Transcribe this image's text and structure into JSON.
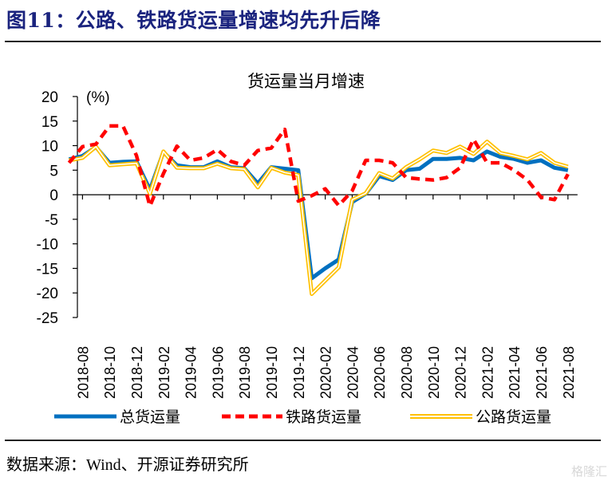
{
  "figure": {
    "title": "图11：公路、铁路货运量增速均先升后降",
    "source": "数据来源：Wind、开源证券研究所",
    "watermark": "格隆汇"
  },
  "chart_data": {
    "type": "line",
    "title": "货运量当月增速",
    "ylabel": "(%)",
    "xlabel": "",
    "ylim": [
      -25,
      20
    ],
    "yticks": [
      20,
      15,
      10,
      5,
      0,
      -5,
      -10,
      -15,
      -20,
      -25
    ],
    "ytick_labels": [
      "20",
      "15",
      "10",
      "5",
      "0",
      "-5",
      "-10",
      "-15",
      "-20",
      "-25"
    ],
    "grid": false,
    "legend_position": "bottom",
    "x": [
      "2018-07",
      "2018-08",
      "2018-09",
      "2018-10",
      "2018-11",
      "2018-12",
      "2019-01",
      "2019-02",
      "2019-03",
      "2019-04",
      "2019-05",
      "2019-06",
      "2019-07",
      "2019-08",
      "2019-09",
      "2019-10",
      "2019-11",
      "2019-12",
      "2020-01",
      "2020-02",
      "2020-03",
      "2020-04",
      "2020-05",
      "2020-06",
      "2020-07",
      "2020-08",
      "2020-09",
      "2020-10",
      "2020-11",
      "2020-12",
      "2021-01",
      "2021-02",
      "2021-03",
      "2021-04",
      "2021-05",
      "2021-06",
      "2021-07",
      "2021-08"
    ],
    "xtick_labels": [
      "2018-08",
      "2018-10",
      "2018-12",
      "2019-02",
      "2019-04",
      "2019-06",
      "2019-08",
      "2019-10",
      "2019-12",
      "2020-02",
      "2020-04",
      "2020-06",
      "2020-08",
      "2020-10",
      "2020-12",
      "2021-02",
      "2021-04",
      "2021-06",
      "2021-08"
    ],
    "series": [
      {
        "name": "总货运量",
        "color": "#0070c0",
        "style": "solid",
        "values": [
          7.2,
          7.9,
          9.7,
          6.5,
          6.7,
          6.8,
          1.0,
          8.7,
          6.0,
          5.6,
          5.6,
          6.8,
          5.6,
          5.4,
          2.3,
          5.6,
          5.3,
          5.0,
          -17.0,
          -15.0,
          -13.2,
          -1.5,
          0.2,
          3.8,
          3.0,
          5.0,
          5.3,
          7.3,
          7.3,
          7.5,
          7.0,
          8.8,
          7.7,
          7.3,
          6.5,
          7.0,
          5.5,
          5.0
        ]
      },
      {
        "name": "铁路货运量",
        "color": "#ff0000",
        "style": "dashed",
        "values": [
          6.5,
          9.8,
          10.3,
          14.0,
          14.0,
          8.0,
          -2.3,
          4.3,
          9.9,
          7.0,
          7.5,
          9.2,
          6.8,
          6.0,
          9.0,
          9.5,
          13.3,
          -1.3,
          -0.2,
          1.2,
          -2.2,
          0.8,
          7.0,
          7.0,
          6.5,
          3.5,
          3.2,
          3.0,
          3.5,
          5.5,
          11.3,
          6.5,
          6.5,
          5.0,
          3.0,
          -0.5,
          -1.0,
          4.2
        ]
      },
      {
        "name": "公路货运量",
        "color": "#ffc000",
        "style": "double",
        "values": [
          7.0,
          7.5,
          9.8,
          6.0,
          6.2,
          6.4,
          0.2,
          8.8,
          5.5,
          5.4,
          5.4,
          6.3,
          5.4,
          5.2,
          1.5,
          5.5,
          4.5,
          4.0,
          -20.2,
          -17.5,
          -14.8,
          -1.0,
          0.3,
          4.4,
          3.3,
          5.6,
          7.2,
          9.0,
          8.5,
          9.8,
          8.3,
          10.8,
          8.5,
          7.9,
          7.2,
          8.5,
          6.5,
          5.7
        ]
      }
    ]
  }
}
